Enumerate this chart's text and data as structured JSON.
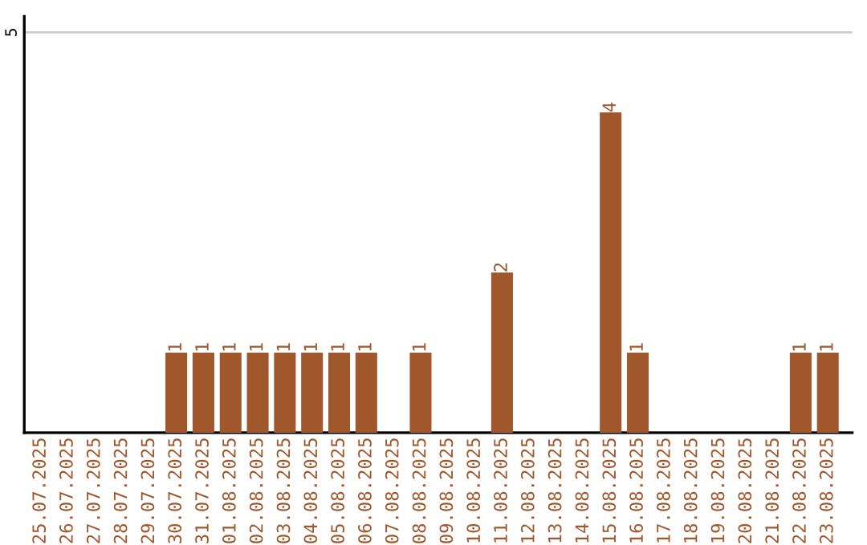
{
  "chart_data": {
    "type": "bar",
    "categories": [
      "25.07.2025",
      "26.07.2025",
      "27.07.2025",
      "28.07.2025",
      "29.07.2025",
      "30.07.2025",
      "31.07.2025",
      "01.08.2025",
      "02.08.2025",
      "03.08.2025",
      "04.08.2025",
      "05.08.2025",
      "06.08.2025",
      "07.08.2025",
      "08.08.2025",
      "09.08.2025",
      "10.08.2025",
      "11.08.2025",
      "12.08.2025",
      "13.08.2025",
      "14.08.2025",
      "15.08.2025",
      "16.08.2025",
      "17.08.2025",
      "18.08.2025",
      "19.08.2025",
      "20.08.2025",
      "21.08.2025",
      "22.08.2025",
      "23.08.2025"
    ],
    "values": [
      0,
      0,
      0,
      0,
      0,
      1,
      1,
      1,
      1,
      1,
      1,
      1,
      1,
      0,
      1,
      0,
      0,
      2,
      0,
      0,
      0,
      4,
      1,
      0,
      0,
      0,
      0,
      0,
      1,
      1
    ],
    "value_labels": [
      null,
      null,
      null,
      null,
      null,
      "1",
      "1",
      "1",
      "1",
      "1",
      "1",
      "1",
      "1",
      null,
      "1",
      null,
      null,
      "2",
      null,
      null,
      null,
      "4",
      "1",
      null,
      null,
      null,
      null,
      null,
      "1",
      "1"
    ],
    "color": "#a0572b",
    "ylim": [
      0,
      5.2
    ],
    "yticks": [
      5
    ],
    "grid": "y"
  }
}
